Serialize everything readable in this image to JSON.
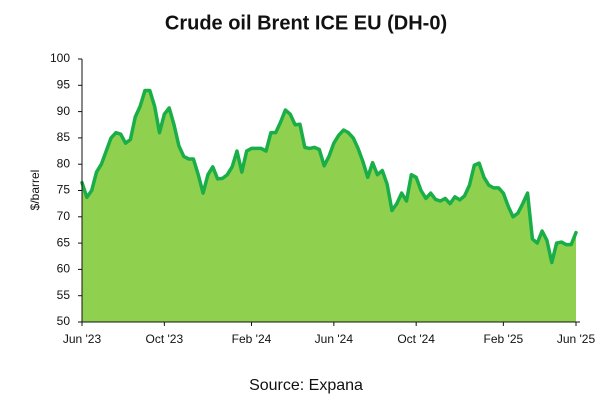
{
  "chart_data": {
    "type": "area",
    "title": "Crude oil Brent ICE EU (DH-0)",
    "y_label": "$/barrel",
    "source": "Source: Expana",
    "line_color": "#1aae48",
    "fill_color": "#8fd14f",
    "ylim": [
      50,
      100
    ],
    "yticks": [
      50,
      55,
      60,
      65,
      70,
      75,
      80,
      85,
      90,
      95,
      100
    ],
    "categories": [
      "Jun '23",
      null,
      null,
      null,
      null,
      null,
      null,
      null,
      null,
      null,
      null,
      null,
      null,
      null,
      null,
      null,
      null,
      "Oct '23",
      null,
      null,
      null,
      null,
      null,
      null,
      null,
      null,
      null,
      null,
      null,
      null,
      null,
      null,
      null,
      null,
      null,
      "Feb '24",
      null,
      null,
      null,
      null,
      null,
      null,
      null,
      null,
      null,
      null,
      null,
      null,
      null,
      null,
      null,
      null,
      "Jun '24",
      null,
      null,
      null,
      null,
      null,
      null,
      null,
      null,
      null,
      null,
      null,
      null,
      null,
      null,
      null,
      null,
      "Oct '24",
      null,
      null,
      null,
      null,
      null,
      null,
      null,
      null,
      null,
      null,
      null,
      null,
      null,
      null,
      null,
      null,
      null,
      "Feb '25",
      null,
      null,
      null,
      null,
      null,
      null,
      null,
      null,
      null,
      null,
      null,
      null,
      null,
      null,
      "Jun '25"
    ],
    "values": [
      76.5,
      73.7,
      75,
      78.5,
      80,
      82.5,
      85,
      86,
      85.7,
      84,
      84.7,
      89,
      91,
      94,
      94,
      91,
      86,
      89.5,
      90.7,
      87.5,
      83.5,
      81.5,
      81,
      81,
      78,
      74.5,
      78,
      79.5,
      77.2,
      77.3,
      78,
      79.5,
      82.5,
      78.5,
      82.5,
      83,
      83,
      83,
      82.5,
      86,
      86,
      88,
      90.3,
      89.5,
      87.5,
      87.6,
      83.2,
      83,
      83.2,
      82.8,
      79.7,
      81.5,
      84,
      85.5,
      86.5,
      86,
      85,
      83,
      80.5,
      77.5,
      80.3,
      78,
      78.8,
      76.2,
      71.2,
      72.5,
      74.5,
      73,
      78,
      77.5,
      75,
      73.5,
      74.5,
      73.3,
      73,
      73.5,
      72.5,
      73.8,
      73.2,
      74,
      76,
      79.8,
      80.2,
      77.5,
      76,
      75.5,
      75.5,
      74.5,
      72,
      70,
      70.7,
      72.5,
      74.5,
      65.8,
      65,
      67.3,
      65.5,
      61.3,
      65,
      65.2,
      64.7,
      64.7,
      67
    ]
  }
}
